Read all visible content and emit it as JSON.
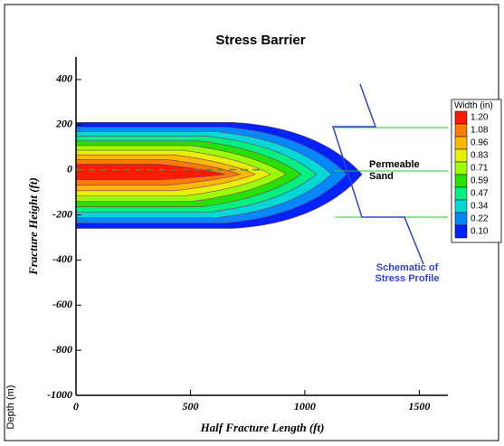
{
  "chart_data": {
    "type": "contour",
    "title": "Stress Barrier",
    "xlabel": "Half Fracture Length (ft)",
    "ylabel": "Fracture Height (ft)",
    "side_label": "Depth (m)",
    "xlim": [
      0,
      1625
    ],
    "ylim": [
      -1000,
      500
    ],
    "xticks": [
      0,
      500,
      1000,
      1500
    ],
    "yticks": [
      -1000,
      -800,
      -600,
      -400,
      -200,
      0,
      200,
      400
    ],
    "legend": {
      "title": "Width (in)",
      "levels": [
        {
          "value": 1.2,
          "label": "1.20"
        },
        1.08,
        0.96,
        0.83,
        0.71,
        0.59,
        0.47,
        0.34,
        0.22,
        {
          "value": 0.1,
          "label": "0.10"
        }
      ],
      "colors": [
        "#ff1a00",
        "#ff7a00",
        "#ffb800",
        "#e8f000",
        "#9cff00",
        "#28e000",
        "#00f080",
        "#00d8d8",
        "#0088ff",
        "#0022ff"
      ]
    },
    "annotations": [
      [
        "Permeable",
        "Sand"
      ],
      [
        "Schematic of",
        "Stress Profile"
      ]
    ]
  }
}
